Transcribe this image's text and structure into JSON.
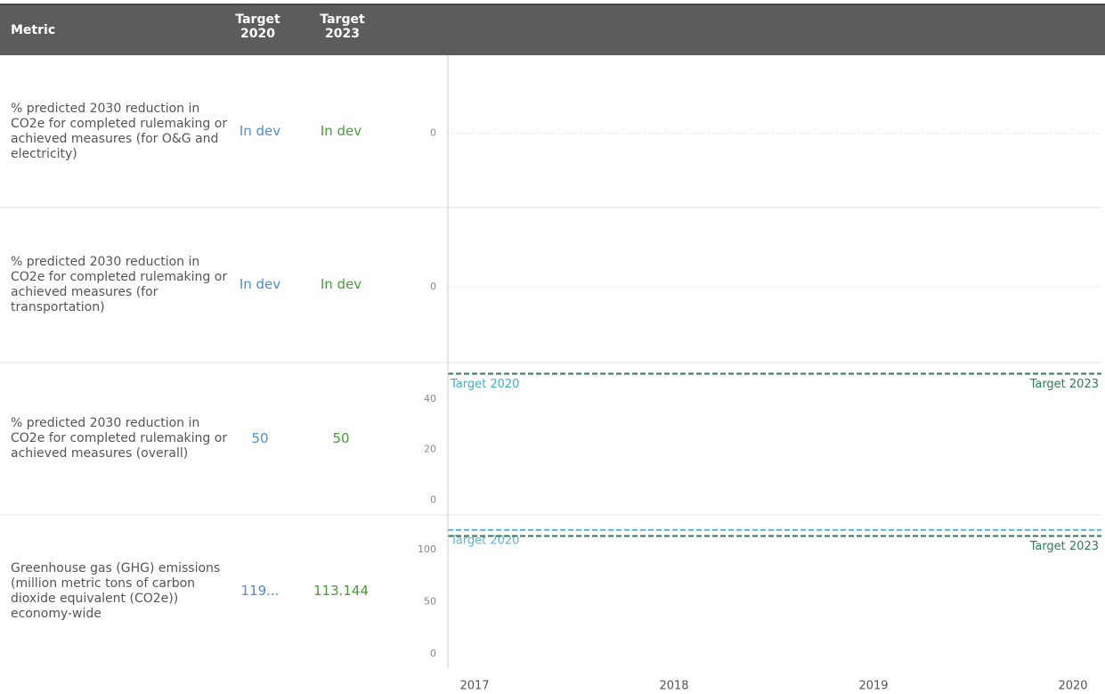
{
  "header": {
    "metric": "Metric",
    "target_2020": "Target 2020",
    "target_2023": "Target 2023"
  },
  "table": {
    "rows": [
      [
        "% predicted 2030 reduction in CO2e for completed rulemaking or achieved measures (for O&G and electricity)",
        "In dev",
        "In dev"
      ],
      [
        "% predicted 2030 reduction in CO2e for completed rulemaking or achieved measures (for transportation)",
        "In dev",
        "In dev"
      ],
      [
        "% predicted 2030 reduction in CO2e for completed rulemaking or achieved measures (overall)",
        "50",
        "50"
      ],
      [
        "Greenhouse gas (GHG) emissions (million metric tons of carbon dioxide equivalent (CO2e)) economy-wide",
        "119...",
        "113.144"
      ]
    ]
  },
  "x_axis": {
    "categories": [
      "2017",
      "2018",
      "2019",
      "2020"
    ]
  },
  "chart_data": [
    {
      "type": "line",
      "ylim": [
        -1,
        1
      ],
      "yticks": [
        0
      ],
      "grid": true,
      "targets": []
    },
    {
      "type": "line",
      "ylim": [
        -1,
        1
      ],
      "yticks": [
        0
      ],
      "grid": true,
      "targets": []
    },
    {
      "type": "line",
      "ylim": [
        -3,
        53
      ],
      "yticks": [
        0,
        20,
        40
      ],
      "grid": false,
      "targets": [
        {
          "name": "Target 2020",
          "value": 50,
          "color": "#3bb0d0"
        },
        {
          "name": "Target 2023",
          "value": 50,
          "color": "#2e7d52"
        }
      ]
    },
    {
      "type": "line",
      "ylim": [
        -7,
        130
      ],
      "yticks": [
        0,
        50,
        100
      ],
      "grid": false,
      "targets": [
        {
          "name": "Target 2020",
          "value": 119,
          "color": "#5ab4e0"
        },
        {
          "name": "Target 2023",
          "value": 113.144,
          "color": "#2e7d52"
        }
      ]
    }
  ]
}
